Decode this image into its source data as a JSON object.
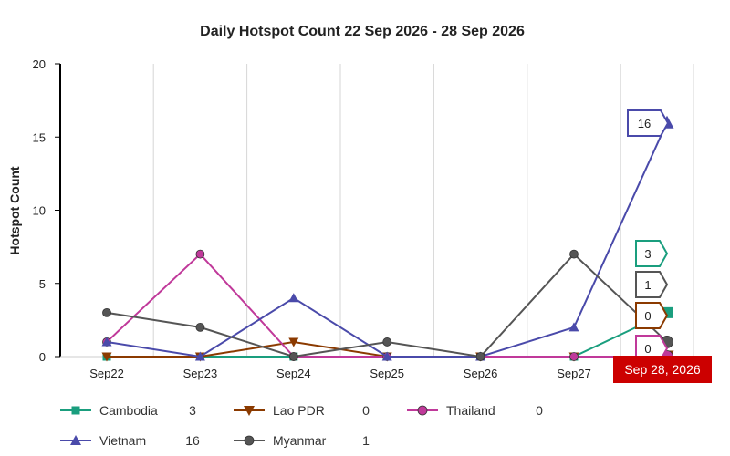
{
  "chart_data": {
    "type": "line",
    "title": "Daily Hotspot Count 22 Sep 2026 - 28 Sep 2026",
    "ylabel": "Hotspot Count",
    "xlabel": "",
    "categories": [
      "Sep22",
      "Sep23",
      "Sep24",
      "Sep25",
      "Sep26",
      "Sep27",
      "Sep28"
    ],
    "x_tick_labels": [
      "Sep22",
      "Sep23",
      "Sep24",
      "Sep25",
      "Sep26",
      "Sep27"
    ],
    "ylim": [
      0,
      20
    ],
    "yticks": [
      0,
      5,
      10,
      15,
      20
    ],
    "grid": true,
    "legend_position": "bottom",
    "series": [
      {
        "name": "Cambodia",
        "color": "#1a9e7e",
        "marker": "square",
        "values": [
          0,
          0,
          0,
          0,
          0,
          0,
          3
        ],
        "latest": "3"
      },
      {
        "name": "Lao PDR",
        "color": "#8b3a00",
        "marker": "triangle-down",
        "values": [
          0,
          0,
          1,
          0,
          0,
          0,
          0
        ],
        "latest": "0"
      },
      {
        "name": "Thailand",
        "color": "#c0399a",
        "marker": "circle",
        "values": [
          1,
          7,
          0,
          0,
          0,
          0,
          0
        ],
        "latest": "0"
      },
      {
        "name": "Vietnam",
        "color": "#4a4aaa",
        "marker": "triangle-up",
        "values": [
          1,
          0,
          4,
          0,
          0,
          2,
          16
        ],
        "latest": "16"
      },
      {
        "name": "Myanmar",
        "color": "#555555",
        "marker": "circle",
        "values": [
          3,
          2,
          0,
          1,
          0,
          7,
          1
        ],
        "latest": "1"
      }
    ],
    "tooltip": {
      "date": "Sep 28, 2026",
      "labels": [
        {
          "series": "Vietnam",
          "text": "16"
        },
        {
          "series": "Cambodia",
          "text": "3"
        },
        {
          "series": "Myanmar",
          "text": "1"
        },
        {
          "series": "Lao PDR",
          "text": "0"
        },
        {
          "series": "Thailand",
          "text": "0"
        }
      ]
    }
  }
}
